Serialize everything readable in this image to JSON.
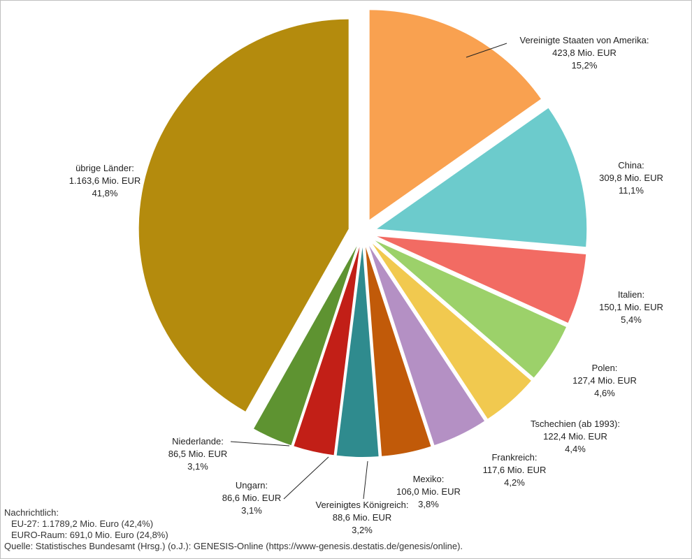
{
  "chart_data": {
    "type": "pie",
    "unit": "Mio. EUR",
    "slices": [
      {
        "name": "Vereinigte Staaten von Amerika",
        "value": 423.8,
        "value_label": "423,8 Mio. EUR",
        "percent_label": "15,2%",
        "color": "#F9A150"
      },
      {
        "name": "China",
        "value": 309.8,
        "value_label": "309,8 Mio. EUR",
        "percent_label": "11,1%",
        "color": "#6CCBCC"
      },
      {
        "name": "Italien",
        "value": 150.1,
        "value_label": "150,1 Mio. EUR",
        "percent_label": "5,4%",
        "color": "#F26B63"
      },
      {
        "name": "Polen",
        "value": 127.4,
        "value_label": "127,4 Mio. EUR",
        "percent_label": "4,6%",
        "color": "#9CD16A"
      },
      {
        "name": "Tschechien (ab 1993)",
        "value": 122.4,
        "value_label": "122,4 Mio. EUR",
        "percent_label": "4,4%",
        "color": "#F1C94F"
      },
      {
        "name": "Frankreich",
        "value": 117.6,
        "value_label": "117,6 Mio. EUR",
        "percent_label": "4,2%",
        "color": "#B490C4"
      },
      {
        "name": "Mexiko",
        "value": 106.0,
        "value_label": "106,0 Mio. EUR",
        "percent_label": "3,8%",
        "color": "#C15A09"
      },
      {
        "name": "Vereinigtes Königreich",
        "value": 88.6,
        "value_label": "88,6 Mio. EUR",
        "percent_label": "3,2%",
        "color": "#2F8B8E"
      },
      {
        "name": "Ungarn",
        "value": 86.6,
        "value_label": "86,6 Mio. EUR",
        "percent_label": "3,1%",
        "color": "#C21F17"
      },
      {
        "name": "Niederlande",
        "value": 86.5,
        "value_label": "86,5 Mio. EUR",
        "percent_label": "3,1%",
        "color": "#5E9331"
      },
      {
        "name": "übrige Länder",
        "value": 1163.6,
        "value_label": "1.163,6 Mio. EUR",
        "percent_label": "41,8%",
        "color": "#B48B0D"
      }
    ]
  },
  "notes": {
    "heading": "Nachrichtlich:",
    "lines": [
      "EU-27: 1.1789,2 Mio. Euro (42,4%)",
      "EURO-Raum: 691,0 Mio. Euro (24,8%)"
    ],
    "source": "Quelle: Statistisches Bundesamt (Hrsg.) (o.J.): GENESIS-Online (https://www-genesis.destatis.de/genesis/online)."
  }
}
